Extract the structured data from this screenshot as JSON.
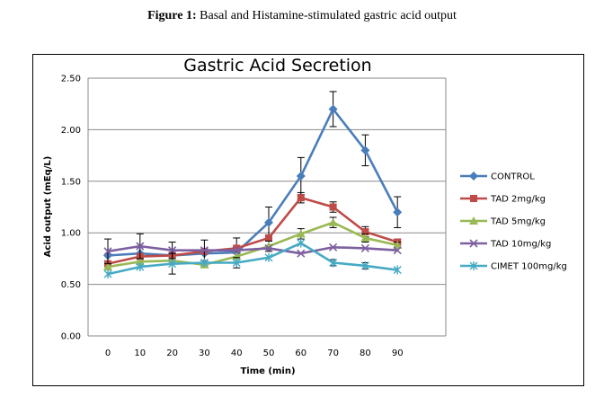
{
  "caption": {
    "prefix": "Figure 1:",
    "text": " Basal and Histamine-stimulated gastric acid output"
  },
  "chart_data": {
    "type": "line",
    "title": "Gastric  Acid Secretion",
    "xlabel": "Time (min)",
    "ylabel": "Acid output (mEq/L)",
    "x": [
      0,
      10,
      20,
      30,
      40,
      50,
      60,
      70,
      80,
      90
    ],
    "ylim": [
      0,
      2.5
    ],
    "y_ticks": [
      "0.00",
      "0.50",
      "1.00",
      "1.50",
      "2.00",
      "2.50"
    ],
    "y_tick_values": [
      0,
      0.5,
      1.0,
      1.5,
      2.0,
      2.5
    ],
    "grid": "horizontal",
    "legend_position": "right",
    "series": [
      {
        "name": "CONTROL",
        "marker": "diamond",
        "color": "#4a7ebb",
        "values": [
          0.78,
          0.8,
          0.78,
          0.8,
          0.81,
          1.1,
          1.55,
          2.2,
          1.8,
          1.2
        ],
        "errors": [
          0.0,
          0.0,
          0.0,
          0.0,
          0.0,
          0.15,
          0.18,
          0.17,
          0.15,
          0.15
        ]
      },
      {
        "name": "TAD 2mg/kg",
        "marker": "square",
        "color": "#be4b48",
        "values": [
          0.7,
          0.77,
          0.78,
          0.82,
          0.85,
          0.95,
          1.34,
          1.25,
          1.01,
          0.91
        ],
        "errors": [
          0.0,
          0.0,
          0.0,
          0.0,
          0.1,
          0.0,
          0.05,
          0.05,
          0.05,
          0.03
        ]
      },
      {
        "name": "TAD 5mg/kg",
        "marker": "triangle",
        "color": "#98b954",
        "values": [
          0.67,
          0.72,
          0.73,
          0.69,
          0.77,
          0.87,
          0.99,
          1.1,
          0.95,
          0.88
        ],
        "errors": [
          0.0,
          0.0,
          0.0,
          0.0,
          0.0,
          0.05,
          0.05,
          0.05,
          0.04,
          0.03
        ]
      },
      {
        "name": "TAD 10mg/kg",
        "marker": "x",
        "color": "#7d60a0",
        "values": [
          0.82,
          0.87,
          0.83,
          0.83,
          0.83,
          0.85,
          0.8,
          0.86,
          0.85,
          0.83
        ],
        "errors": [
          0.12,
          0.12,
          0.08,
          0.1,
          0.0,
          0.0,
          0.0,
          0.0,
          0.0,
          0.0
        ]
      },
      {
        "name": "CIMET 100mg/kg",
        "marker": "asterisk",
        "color": "#46aac5",
        "values": [
          0.6,
          0.67,
          0.7,
          0.71,
          0.71,
          0.76,
          0.9,
          0.71,
          0.68,
          0.64
        ],
        "errors": [
          0.0,
          0.0,
          0.1,
          0.0,
          0.05,
          0.0,
          0.0,
          0.03,
          0.03,
          0.0
        ]
      }
    ]
  }
}
